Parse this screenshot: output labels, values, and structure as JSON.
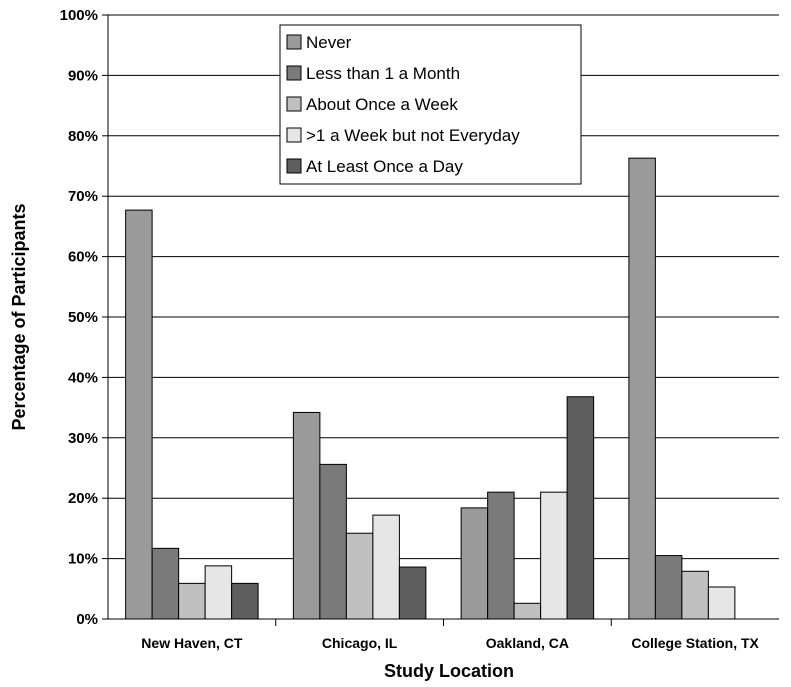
{
  "chart_data": {
    "type": "bar",
    "title": "",
    "xlabel": "Study Location",
    "ylabel": "Percentage of Participants",
    "ylim": [
      0,
      100
    ],
    "y_ticks": [
      "0%",
      "10%",
      "20%",
      "30%",
      "40%",
      "50%",
      "60%",
      "70%",
      "80%",
      "90%",
      "100%"
    ],
    "grid": true,
    "legend_position": "top-center",
    "categories": [
      "New Haven, CT",
      "Chicago, IL",
      "Oakland, CA",
      "College Station, TX"
    ],
    "series": [
      {
        "name": "Never",
        "color": "#9a9a9a",
        "values": [
          67.7,
          34.2,
          18.4,
          76.3
        ]
      },
      {
        "name": "Less than 1 a Month",
        "color": "#7a7a7a",
        "values": [
          11.7,
          25.6,
          21.0,
          10.5
        ]
      },
      {
        "name": "About Once a Week",
        "color": "#c0c0c0",
        "values": [
          5.9,
          14.2,
          2.6,
          7.9
        ]
      },
      {
        "name": ">1 a Week but not Everyday",
        "color": "#e6e6e6",
        "values": [
          8.8,
          17.2,
          21.0,
          5.3
        ]
      },
      {
        "name": "At Least Once a Day",
        "color": "#5e5e5e",
        "values": [
          5.9,
          8.6,
          36.8,
          0
        ]
      }
    ]
  }
}
